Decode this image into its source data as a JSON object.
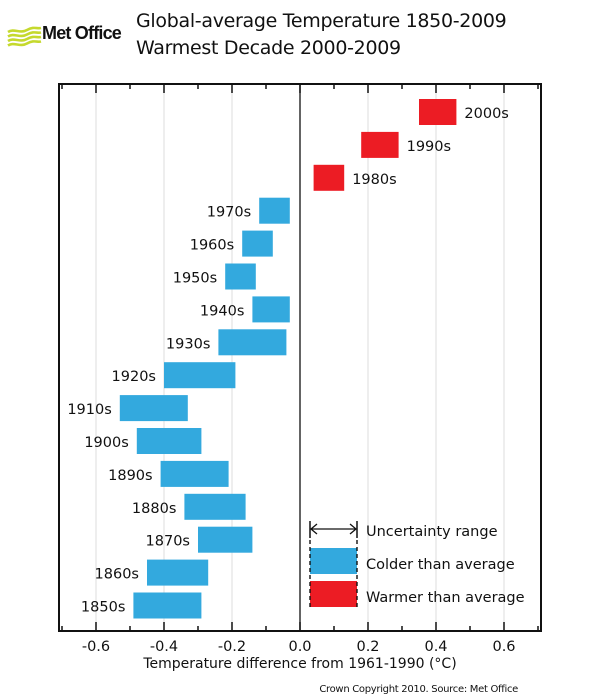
{
  "header": {
    "logo_text": "Met Office",
    "logo_color": "#c5d92d",
    "title_line1": "Global-average Temperature 1850-2009",
    "title_line2": "Warmest Decade 2000-2009"
  },
  "footer": {
    "copyright": "Crown Copyright 2010. Source: Met Office"
  },
  "chart_data": {
    "type": "bar",
    "subtype": "floating-range (uncertainty range per decade)",
    "title": "Global-average Temperature 1850-2009 — Warmest Decade 2000-2009",
    "xlabel": "Temperature difference from 1961-1990 (°C)",
    "ylabel": "",
    "xlim": [
      -0.7,
      0.7
    ],
    "x_ticks": [
      -0.6,
      -0.4,
      -0.2,
      0.0,
      0.2,
      0.4,
      0.6
    ],
    "x_tick_labels": [
      "-0.6",
      "-0.4",
      "-0.2",
      "0.0",
      "0.2",
      "0.4",
      "0.6"
    ],
    "minor_tick_step": 0.1,
    "grid": "vertical gridlines at labeled ticks",
    "colors": {
      "colder": "#33a9de",
      "warmer": "#ec1c24"
    },
    "categories": [
      "2000s",
      "1990s",
      "1980s",
      "1970s",
      "1960s",
      "1950s",
      "1940s",
      "1930s",
      "1920s",
      "1910s",
      "1900s",
      "1890s",
      "1880s",
      "1870s",
      "1860s",
      "1850s"
    ],
    "series": [
      {
        "name": "Uncertainty range low",
        "values": [
          0.35,
          0.18,
          0.04,
          -0.12,
          -0.17,
          -0.22,
          -0.14,
          -0.24,
          -0.4,
          -0.53,
          -0.48,
          -0.41,
          -0.34,
          -0.3,
          -0.45,
          -0.49
        ]
      },
      {
        "name": "Uncertainty range high",
        "values": [
          0.46,
          0.29,
          0.13,
          -0.03,
          -0.08,
          -0.13,
          -0.03,
          -0.04,
          -0.19,
          -0.33,
          -0.29,
          -0.21,
          -0.16,
          -0.14,
          -0.27,
          -0.29
        ]
      }
    ],
    "classification": [
      "warmer",
      "warmer",
      "warmer",
      "colder",
      "colder",
      "colder",
      "colder",
      "colder",
      "colder",
      "colder",
      "colder",
      "colder",
      "colder",
      "colder",
      "colder",
      "colder"
    ],
    "legend": {
      "placement": "bottom-right",
      "entries": [
        "Uncertainty range",
        "Colder than average",
        "Warmer than average"
      ]
    }
  }
}
